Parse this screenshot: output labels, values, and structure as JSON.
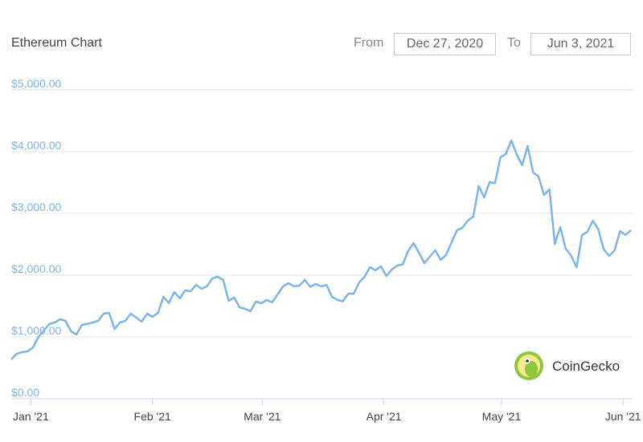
{
  "header": {
    "title": "Ethereum Chart",
    "from_label": "From",
    "from_value": "Dec 27, 2020",
    "to_label": "To",
    "to_value": "Jun 3, 2021"
  },
  "watermark": "CoinGecko",
  "chart_data": {
    "type": "line",
    "color": "#7cb5ec",
    "grid": true,
    "values": [
      636,
      727,
      753,
      766,
      830,
      1000,
      1104,
      1208,
      1234,
      1286,
      1260,
      1091,
      1039,
      1195,
      1210,
      1234,
      1260,
      1377,
      1390,
      1130,
      1234,
      1260,
      1377,
      1312,
      1247,
      1377,
      1325,
      1390,
      1649,
      1545,
      1727,
      1623,
      1753,
      1740,
      1844,
      1779,
      1820,
      1948,
      1974,
      1920,
      1584,
      1636,
      1480,
      1454,
      1416,
      1571,
      1545,
      1597,
      1560,
      1688,
      1818,
      1870,
      1820,
      1830,
      1922,
      1810,
      1857,
      1820,
      1840,
      1649,
      1600,
      1575,
      1701,
      1700,
      1883,
      1974,
      2130,
      2078,
      2143,
      1987,
      2090,
      2156,
      2170,
      2390,
      2519,
      2364,
      2195,
      2299,
      2403,
      2247,
      2330,
      2532,
      2727,
      2766,
      2883,
      2948,
      3442,
      3260,
      3506,
      3490,
      3909,
      3961,
      4182,
      3948,
      3779,
      4091,
      3662,
      3597,
      3299,
      3390,
      2506,
      2779,
      2429,
      2312,
      2130,
      2649,
      2701,
      2883,
      2740,
      2416,
      2312,
      2403,
      2714,
      2649,
      2727
    ],
    "ylim": [
      0,
      5000
    ],
    "yticks": [
      {
        "value": 0,
        "label": "$0.00"
      },
      {
        "value": 1000,
        "label": "$1,000.00"
      },
      {
        "value": 2000,
        "label": "$2,000.00"
      },
      {
        "value": 3000,
        "label": "$3,000.00"
      },
      {
        "value": 4000,
        "label": "$4,000.00"
      },
      {
        "value": 5000,
        "label": "$5,000.00"
      }
    ],
    "xtick_labels": [
      "Jan '21",
      "Feb '21",
      "Mar '21",
      "Apr '21",
      "May '21",
      "Jun '21"
    ]
  }
}
